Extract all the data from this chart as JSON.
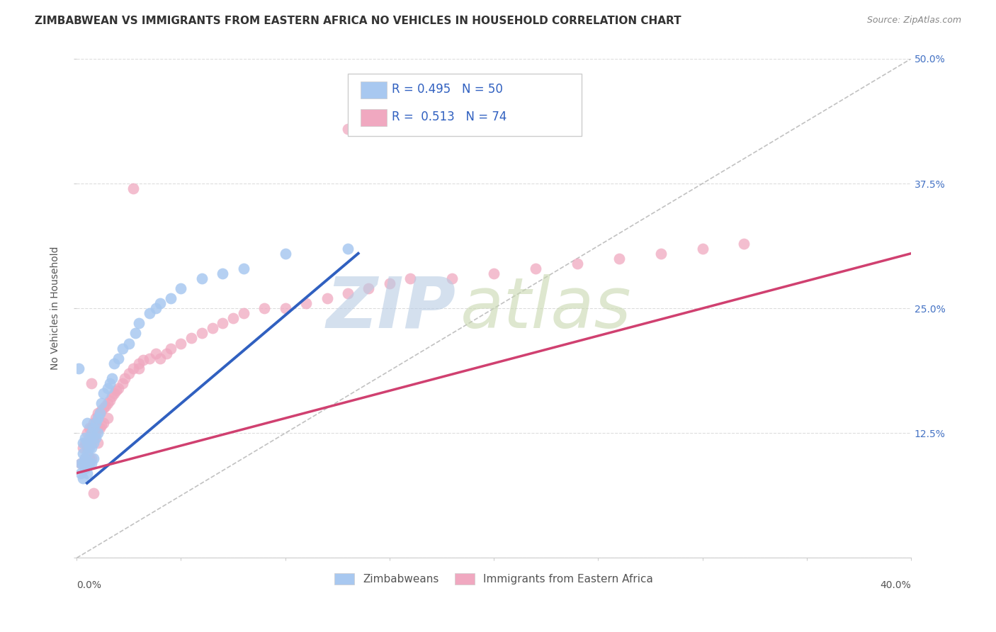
{
  "title": "ZIMBABWEAN VS IMMIGRANTS FROM EASTERN AFRICA NO VEHICLES IN HOUSEHOLD CORRELATION CHART",
  "source": "Source: ZipAtlas.com",
  "ylabel": "No Vehicles in Household",
  "yticks": [
    0.0,
    0.125,
    0.25,
    0.375,
    0.5
  ],
  "ytick_labels": [
    "",
    "12.5%",
    "25.0%",
    "37.5%",
    "50.0%"
  ],
  "xmin": 0.0,
  "xmax": 0.4,
  "ymin": 0.0,
  "ymax": 0.5,
  "blue_R": 0.495,
  "blue_N": 50,
  "pink_R": 0.513,
  "pink_N": 74,
  "blue_color": "#a8c8f0",
  "pink_color": "#f0a8c0",
  "blue_edge_color": "#7aaad8",
  "pink_edge_color": "#e088a8",
  "blue_line_color": "#3060c0",
  "pink_line_color": "#d04070",
  "diag_color": "#bbbbbb",
  "watermark_zip_color": "#b8cce4",
  "watermark_atlas_color": "#c8d8b0",
  "title_fontsize": 11,
  "source_fontsize": 9,
  "legend_label_blue": "Zimbabweans",
  "legend_label_pink": "Immigrants from Eastern Africa",
  "blue_line_x0": 0.005,
  "blue_line_y0": 0.075,
  "blue_line_x1": 0.135,
  "blue_line_y1": 0.305,
  "pink_line_x0": 0.0,
  "pink_line_y0": 0.085,
  "pink_line_x1": 0.4,
  "pink_line_y1": 0.305,
  "blue_scatter_x": [
    0.002,
    0.002,
    0.003,
    0.003,
    0.003,
    0.003,
    0.004,
    0.004,
    0.004,
    0.005,
    0.005,
    0.005,
    0.005,
    0.005,
    0.006,
    0.006,
    0.006,
    0.007,
    0.007,
    0.007,
    0.008,
    0.008,
    0.008,
    0.009,
    0.009,
    0.01,
    0.01,
    0.011,
    0.012,
    0.013,
    0.015,
    0.016,
    0.017,
    0.018,
    0.02,
    0.022,
    0.025,
    0.028,
    0.03,
    0.035,
    0.038,
    0.04,
    0.045,
    0.05,
    0.06,
    0.07,
    0.08,
    0.1,
    0.13,
    0.001
  ],
  "blue_scatter_y": [
    0.095,
    0.085,
    0.115,
    0.105,
    0.095,
    0.08,
    0.12,
    0.1,
    0.09,
    0.135,
    0.115,
    0.105,
    0.095,
    0.085,
    0.12,
    0.11,
    0.095,
    0.125,
    0.11,
    0.095,
    0.13,
    0.115,
    0.1,
    0.135,
    0.12,
    0.14,
    0.125,
    0.145,
    0.155,
    0.165,
    0.17,
    0.175,
    0.18,
    0.195,
    0.2,
    0.21,
    0.215,
    0.225,
    0.235,
    0.245,
    0.25,
    0.255,
    0.26,
    0.27,
    0.28,
    0.285,
    0.29,
    0.305,
    0.31,
    0.19
  ],
  "pink_scatter_x": [
    0.002,
    0.003,
    0.003,
    0.004,
    0.004,
    0.005,
    0.005,
    0.005,
    0.006,
    0.006,
    0.006,
    0.007,
    0.007,
    0.007,
    0.008,
    0.008,
    0.009,
    0.009,
    0.01,
    0.01,
    0.01,
    0.011,
    0.011,
    0.012,
    0.012,
    0.013,
    0.013,
    0.014,
    0.015,
    0.015,
    0.016,
    0.017,
    0.018,
    0.019,
    0.02,
    0.022,
    0.023,
    0.025,
    0.027,
    0.03,
    0.03,
    0.032,
    0.035,
    0.038,
    0.04,
    0.043,
    0.045,
    0.05,
    0.055,
    0.06,
    0.065,
    0.07,
    0.075,
    0.08,
    0.09,
    0.1,
    0.11,
    0.12,
    0.13,
    0.14,
    0.15,
    0.16,
    0.18,
    0.2,
    0.22,
    0.24,
    0.26,
    0.28,
    0.3,
    0.32,
    0.027,
    0.13,
    0.007,
    0.008
  ],
  "pink_scatter_y": [
    0.095,
    0.11,
    0.095,
    0.115,
    0.1,
    0.125,
    0.11,
    0.095,
    0.13,
    0.115,
    0.1,
    0.13,
    0.115,
    0.1,
    0.135,
    0.12,
    0.14,
    0.125,
    0.145,
    0.13,
    0.115,
    0.145,
    0.13,
    0.148,
    0.133,
    0.15,
    0.135,
    0.152,
    0.155,
    0.14,
    0.158,
    0.162,
    0.165,
    0.168,
    0.17,
    0.175,
    0.18,
    0.185,
    0.19,
    0.19,
    0.195,
    0.198,
    0.2,
    0.205,
    0.2,
    0.205,
    0.21,
    0.215,
    0.22,
    0.225,
    0.23,
    0.235,
    0.24,
    0.245,
    0.25,
    0.25,
    0.255,
    0.26,
    0.265,
    0.27,
    0.275,
    0.28,
    0.28,
    0.285,
    0.29,
    0.295,
    0.3,
    0.305,
    0.31,
    0.315,
    0.37,
    0.43,
    0.175,
    0.065
  ]
}
